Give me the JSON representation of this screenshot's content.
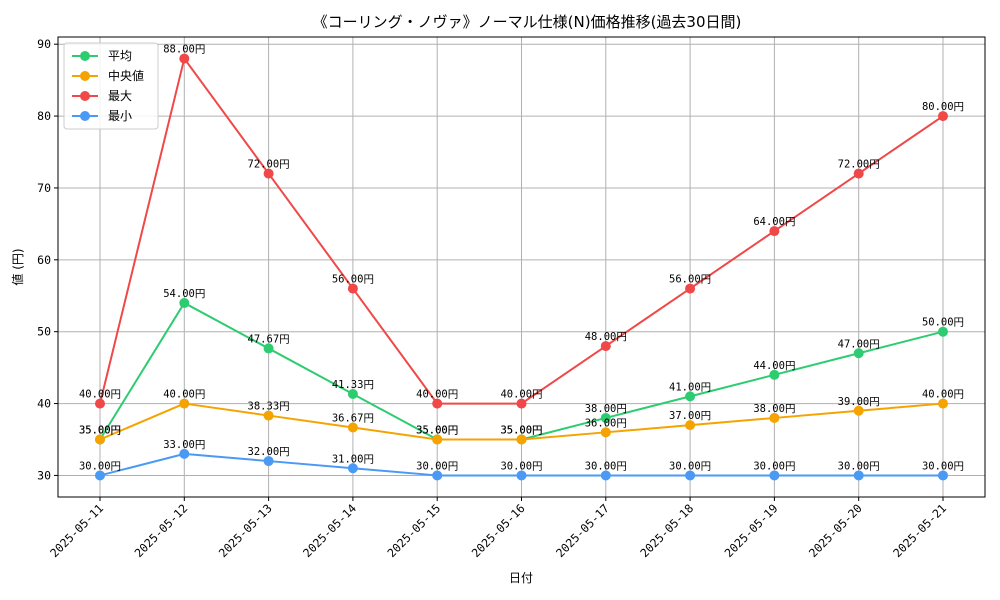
{
  "chart_data": {
    "type": "line",
    "title": "《コーリング・ノヴァ》ノーマル仕様(N)価格推移(過去30日間)",
    "xlabel": "日付",
    "ylabel": "値 (円)",
    "ylim": [
      27,
      91
    ],
    "yticks": [
      30,
      40,
      50,
      60,
      70,
      80,
      90
    ],
    "grid": true,
    "legend_position": "top-left",
    "categories": [
      "2025-05-11",
      "2025-05-12",
      "2025-05-13",
      "2025-05-14",
      "2025-05-15",
      "2025-05-16",
      "2025-05-17",
      "2025-05-18",
      "2025-05-19",
      "2025-05-20",
      "2025-05-21"
    ],
    "series": [
      {
        "name": "平均",
        "color": "#2ecc71",
        "values": [
          35.0,
          54.0,
          47.67,
          41.33,
          35.0,
          35.0,
          38.0,
          41.0,
          44.0,
          47.0,
          50.0
        ],
        "labels": [
          "35.00円",
          "54.00円",
          "47.67円",
          "41.33円",
          "35.00円",
          "35.00円",
          "38.00円",
          "41.00円",
          "44.00円",
          "47.00円",
          "50.00円"
        ]
      },
      {
        "name": "中央値",
        "color": "#f5a300",
        "values": [
          35.0,
          40.0,
          38.33,
          36.67,
          35.0,
          35.0,
          36.0,
          37.0,
          38.0,
          39.0,
          40.0
        ],
        "labels": [
          "35.00円",
          "40.00円",
          "38.33円",
          "36.67円",
          "35.00円",
          "35.00円",
          "36.00円",
          "37.00円",
          "38.00円",
          "39.00円",
          "40.00円"
        ]
      },
      {
        "name": "最大",
        "color": "#f04848",
        "values": [
          40.0,
          88.0,
          72.0,
          56.0,
          40.0,
          40.0,
          48.0,
          56.0,
          64.0,
          72.0,
          80.0
        ],
        "labels": [
          "40.00円",
          "88.00円",
          "72.00円",
          "56.00円",
          "40.00円",
          "40.00円",
          "48.00円",
          "56.00円",
          "64.00円",
          "72.00円",
          "80.00円"
        ]
      },
      {
        "name": "最小",
        "color": "#4a9af5",
        "values": [
          30.0,
          33.0,
          32.0,
          31.0,
          30.0,
          30.0,
          30.0,
          30.0,
          30.0,
          30.0,
          30.0
        ],
        "labels": [
          "30.00円",
          "33.00円",
          "32.00円",
          "31.00円",
          "30.00円",
          "30.00円",
          "30.00円",
          "30.00円",
          "30.00円",
          "30.00円",
          "30.00円"
        ]
      }
    ]
  }
}
